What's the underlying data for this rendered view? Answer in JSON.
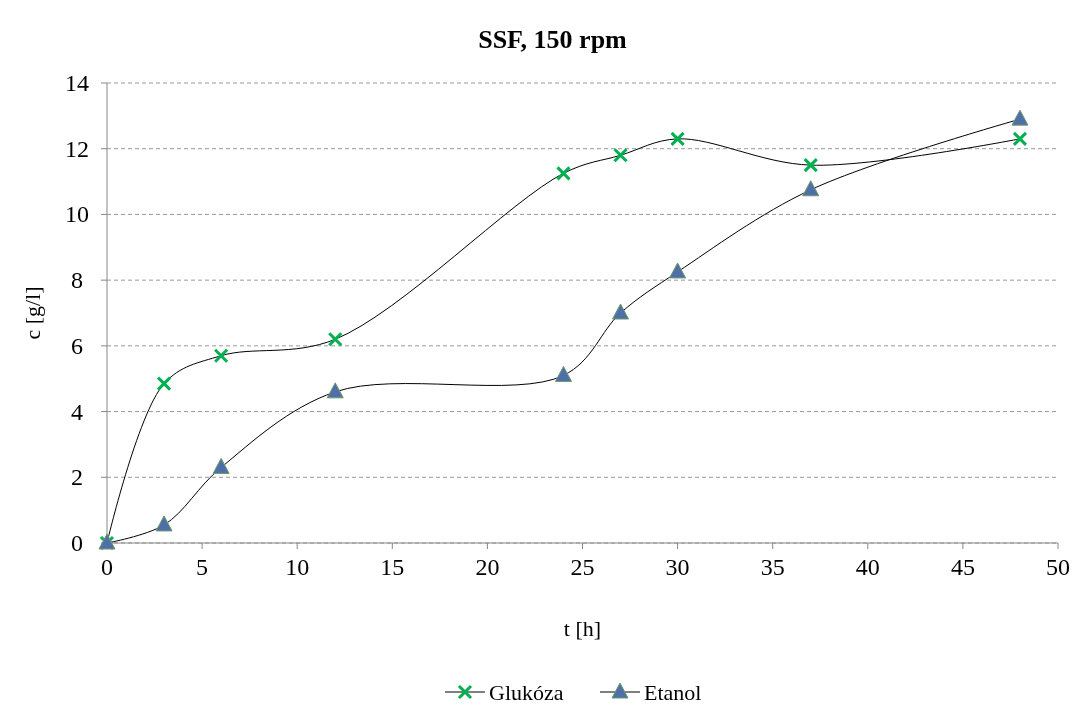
{
  "chart_data": {
    "type": "line",
    "title": "SSF, 150 rpm",
    "xlabel": "t [h]",
    "ylabel": "c [g/l]",
    "x": [
      0,
      3,
      6,
      12,
      24,
      27,
      30,
      37,
      48
    ],
    "series": [
      {
        "name": "Glukóza",
        "color": "#00b050",
        "marker": "cross",
        "values": [
          0,
          4.85,
          5.7,
          6.2,
          11.25,
          11.8,
          12.3,
          11.5,
          12.3
        ]
      },
      {
        "name": "Etanol",
        "color": "#4f6fa8",
        "marker": "triangle",
        "values": [
          0,
          0.55,
          2.3,
          4.6,
          5.1,
          7.0,
          8.25,
          10.75,
          12.9
        ]
      }
    ],
    "xlim": [
      0,
      50
    ],
    "xticks": [
      0,
      5,
      10,
      15,
      20,
      25,
      30,
      35,
      40,
      45,
      50
    ],
    "ylim": [
      0,
      14
    ],
    "yticks": [
      0,
      2,
      4,
      6,
      8,
      10,
      12,
      14
    ],
    "grid": "y",
    "legend": "bottom",
    "line_style": "solid"
  }
}
